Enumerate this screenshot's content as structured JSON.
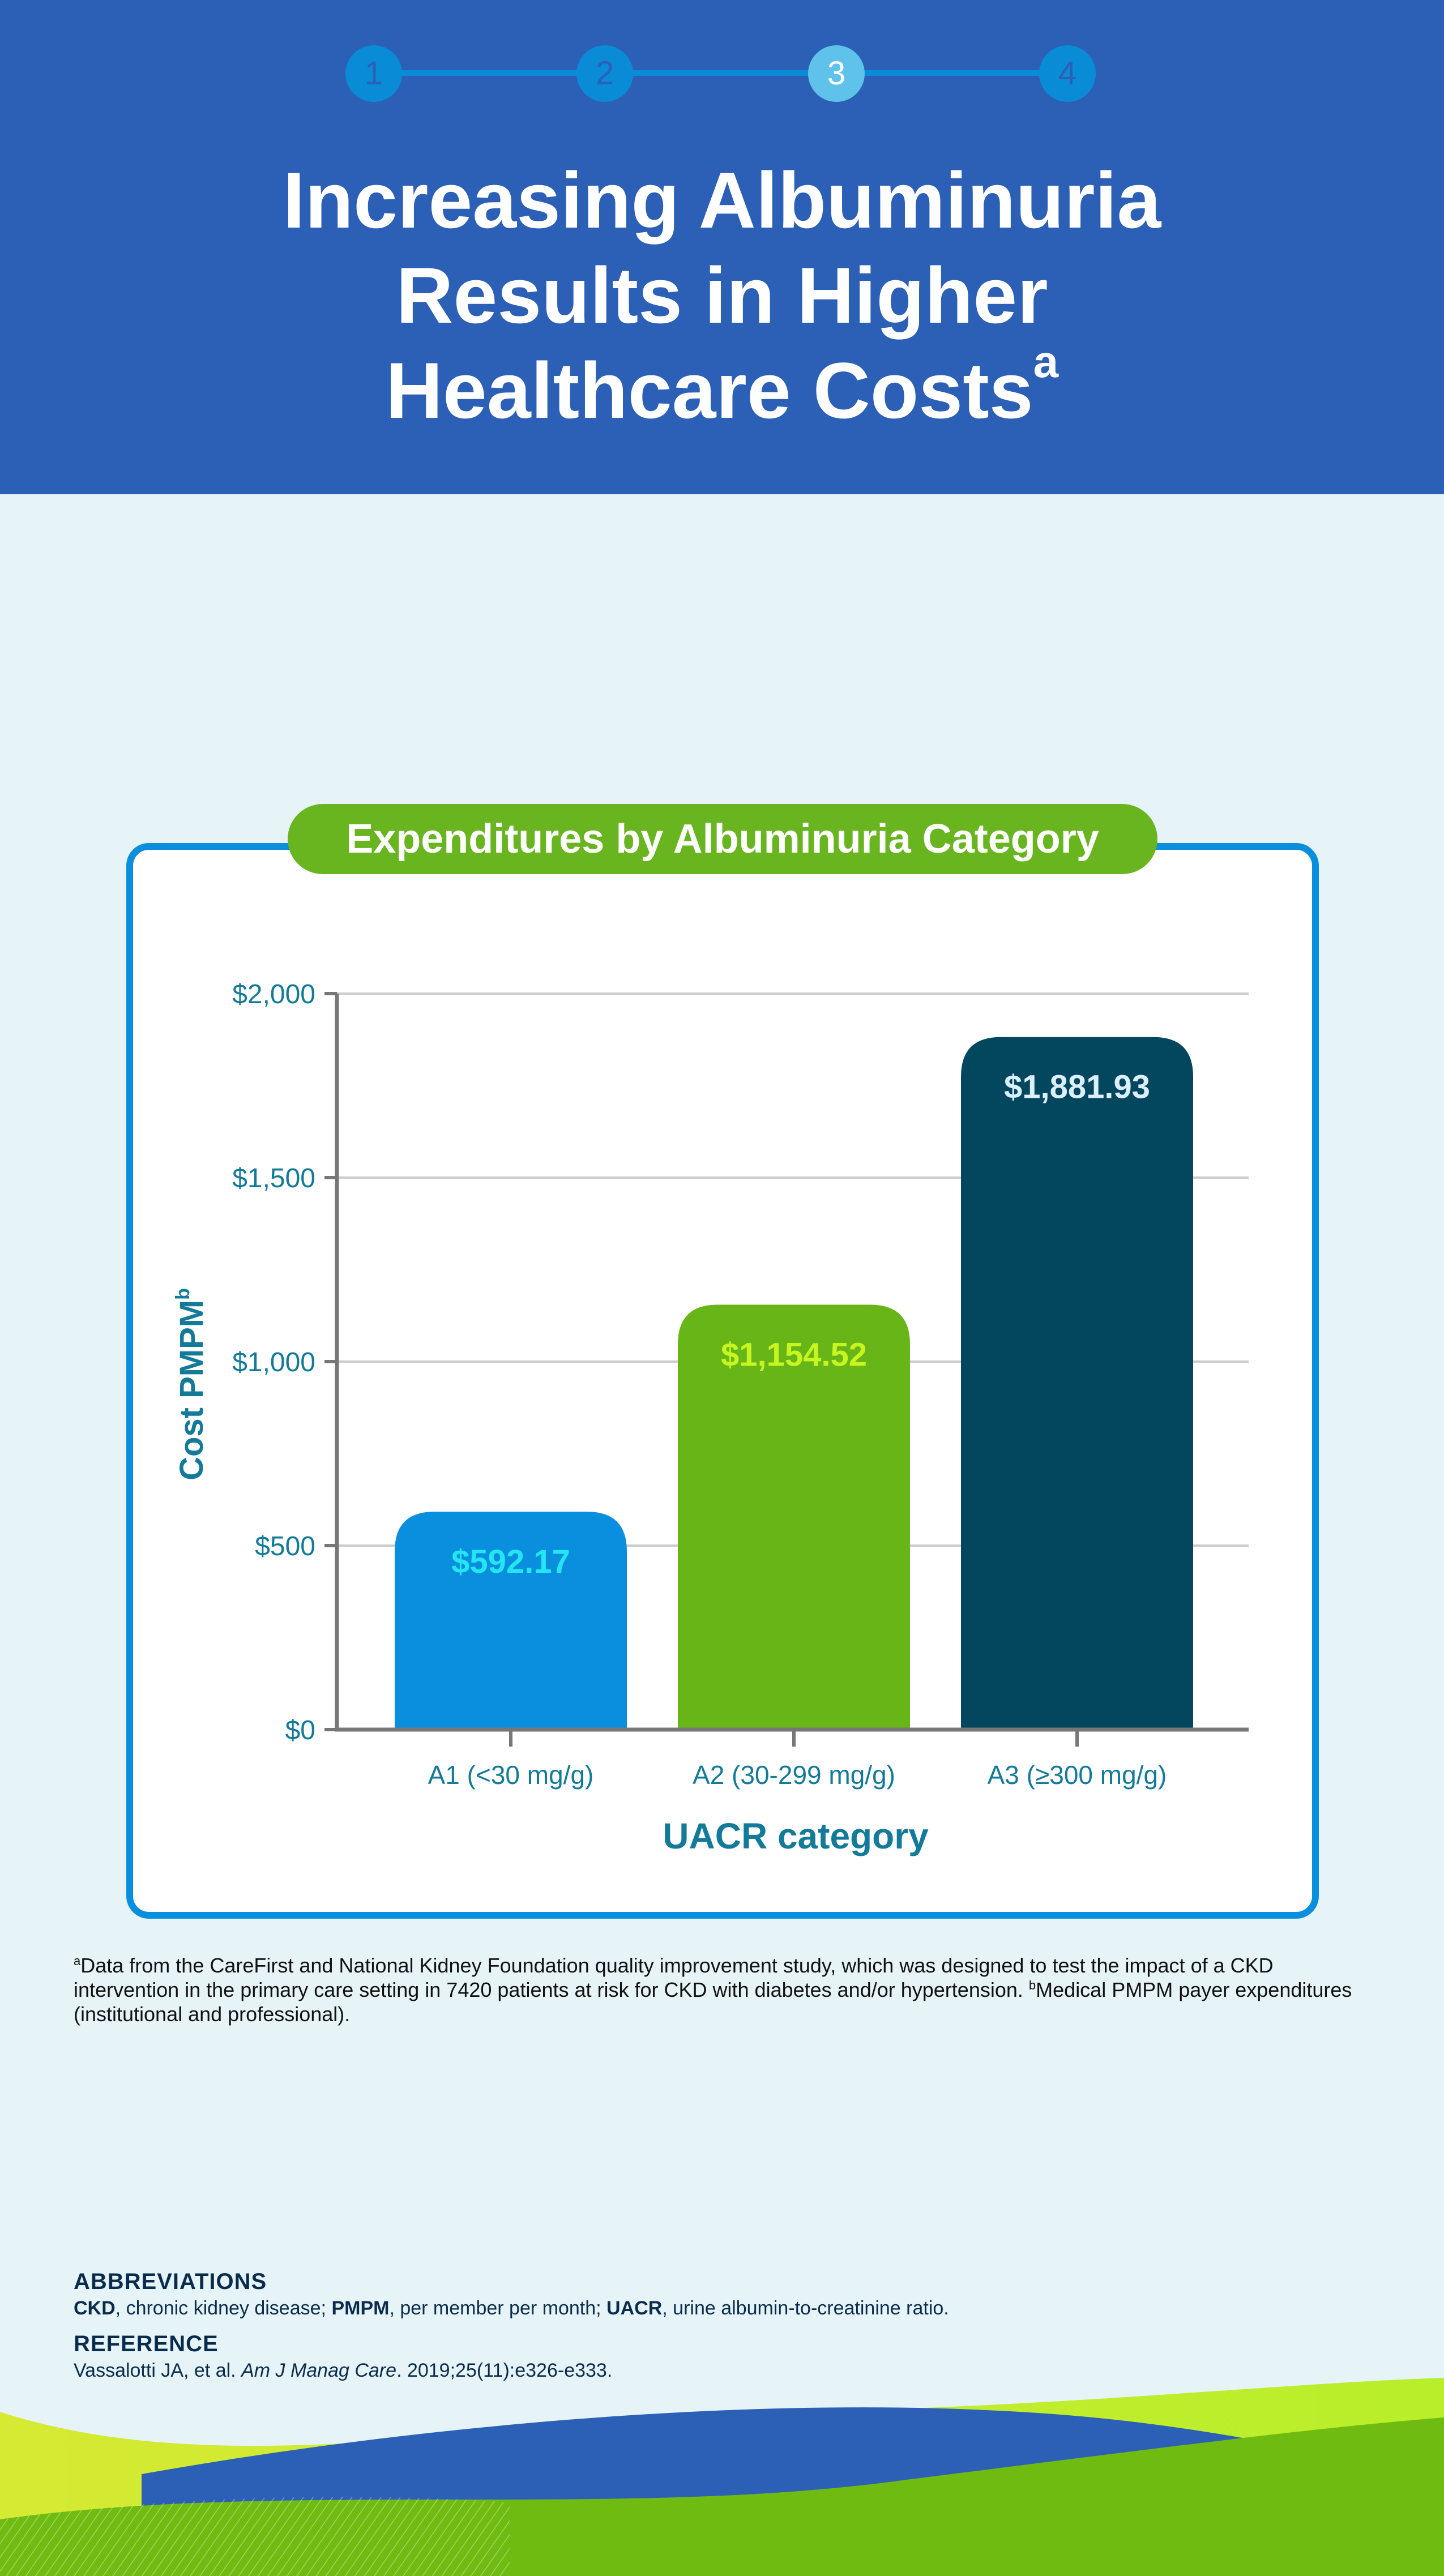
{
  "header": {
    "steps": [
      "1",
      "2",
      "3",
      "4"
    ],
    "active_step": "3",
    "title_lines": [
      "Increasing Albuminuria",
      "Results in Higher",
      "Healthcare Costs"
    ],
    "title_superscript": "a"
  },
  "chart_title": "Expenditures by Albuminuria Category",
  "chart_data": {
    "type": "bar",
    "categories": [
      "A1 (<30 mg/g)",
      "A2 (30-299 mg/g)",
      "A3 (≥300 mg/g)"
    ],
    "values": [
      592.17,
      1154.52,
      1881.93
    ],
    "value_labels": [
      "$592.17",
      "$1,154.52",
      "$1,881.93"
    ],
    "bar_colors": [
      "#0a8fde",
      "#68b518",
      "#03475f"
    ],
    "value_label_colors": [
      "#24e6f2",
      "#c7f51f",
      "#dcefff"
    ],
    "title": "Expenditures by Albuminuria Category",
    "xlabel": "UACR category",
    "ylabel": "Cost PMPM",
    "ylabel_superscript": "b",
    "yticks": [
      "$0",
      "$500",
      "$1,000",
      "$1,500",
      "$2,000"
    ],
    "ytick_values": [
      0,
      500,
      1000,
      1500,
      2000
    ],
    "ylim": [
      0,
      2000
    ],
    "grid": true
  },
  "footnote": {
    "a_mark": "a",
    "a_text": "Data from the CareFirst and National Kidney Foundation quality improvement study, which was designed to test the impact of a CKD intervention in the primary care setting in 7420 patients at risk for CKD with diabetes and/or hypertension.",
    "b_mark": "b",
    "b_text": "Medical PMPM payer expenditures (institutional and professional)."
  },
  "abbreviations": {
    "heading": "ABBREVIATIONS",
    "items": [
      {
        "term": "CKD",
        "definition": ", chronic kidney disease; "
      },
      {
        "term": "PMPM",
        "definition": ", per member per month; "
      },
      {
        "term": "UACR",
        "definition": ", urine albumin-to-creatinine ratio."
      }
    ]
  },
  "reference": {
    "heading": "REFERENCE",
    "authors": "Vassalotti JA, et al. ",
    "journal": "Am J Manag Care",
    "citation": ". 2019;25(11):e326-e333."
  },
  "colors": {
    "header_blue": "#2b60b6",
    "background": "#e6f4f8",
    "accent_green": "#68b520",
    "accent_blue": "#0a8fde",
    "axis_text": "#137a99"
  }
}
